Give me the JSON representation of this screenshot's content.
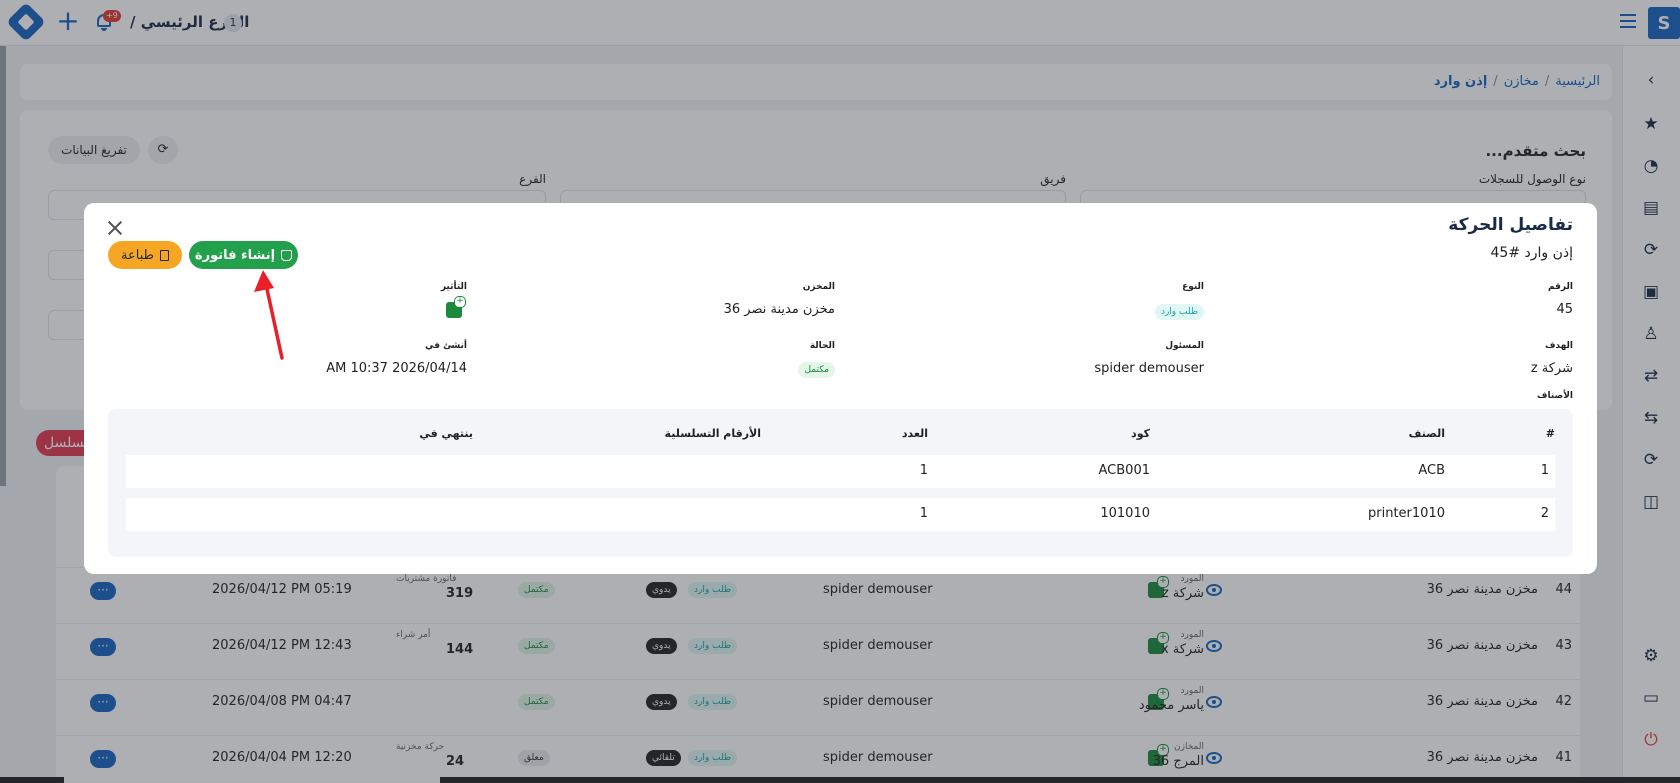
{
  "topbar": {
    "branch_name": "الفرع الرئيسي /",
    "branch_number": "1",
    "notification_count": "+9"
  },
  "breadcrumb": {
    "home": "الرئيسية",
    "section": "مخازن",
    "current": "إذن وارد",
    "sep": "/"
  },
  "background": {
    "advanced_search": "بحث متقدم...",
    "reset_button": "تفريغ البيانات",
    "label_access_type": "نوع الوصول للسجلات",
    "label_team": "فريق",
    "label_branch": "الفرع",
    "pill_label": "تسلسل",
    "rows": [
      {
        "num": "44",
        "warehouse": "مخزن مدينة نصر 36",
        "party_label": "المورد",
        "party": "شركة z",
        "user": "spider demouser",
        "type_tag": "طلب وارد",
        "mode_tag": "يدوي",
        "status": "مكتمل",
        "ref_label": "فاتورة مشتريات",
        "ref_num": "319",
        "date": "2026/04/12 PM 05:19"
      },
      {
        "num": "43",
        "warehouse": "مخزن مدينة نصر 36",
        "party_label": "المورد",
        "party": "شركة x",
        "user": "spider demouser",
        "type_tag": "طلب وارد",
        "mode_tag": "يدوي",
        "status": "مكتمل",
        "ref_label": "أمر شراء",
        "ref_num": "144",
        "date": "2026/04/12 PM 12:43"
      },
      {
        "num": "42",
        "warehouse": "مخزن مدينة نصر 36",
        "party_label": "المورد",
        "party": "ياسر محمود",
        "user": "spider demouser",
        "type_tag": "طلب وارد",
        "mode_tag": "يدوي",
        "status": "مكتمل",
        "ref_label": "",
        "ref_num": "",
        "date": "2026/04/08 PM 04:47"
      },
      {
        "num": "41",
        "warehouse": "مخزن مدينة نصر 36",
        "party_label": "المخازن",
        "party": "المرج 36",
        "user": "spider demouser",
        "type_tag": "طلب وارد",
        "mode_tag": "تلقائي",
        "status": "معلق",
        "ref_label": "حركة مخزنية",
        "ref_num": "24",
        "date": "2026/04/04 PM 12:20"
      }
    ]
  },
  "modal": {
    "title": "تفاصيل الحركة",
    "subtitle": "إذن وارد #45",
    "print_button": "طباعة",
    "invoice_button": "إنشاء فاتورة",
    "fields": {
      "number_label": "الرقم",
      "number_value": "45",
      "type_label": "النوع",
      "type_value": "طلب وارد",
      "warehouse_label": "المخزن",
      "warehouse_value": "مخزن مدينة نصر 36",
      "effect_label": "التأثير",
      "target_label": "الهدف",
      "target_value": "شركة z",
      "responsible_label": "المسئول",
      "responsible_value": "spider demouser",
      "status_label": "الحالة",
      "status_value": "مكتمل",
      "created_label": "أنشئ في",
      "created_value": "2026/04/14 AM 10:37"
    },
    "items_label": "الأصناف",
    "table": {
      "headers": {
        "index": "#",
        "item": "الصنف",
        "code": "كود",
        "qty": "العدد",
        "serials": "الأرقام التسلسلية",
        "expires": "ينتهي في"
      },
      "rows": [
        {
          "index": "1",
          "item": "ACB",
          "code": "ACB001",
          "qty": "1",
          "serials": "",
          "expires": ""
        },
        {
          "index": "2",
          "item": "printer1010",
          "code": "101010",
          "qty": "1",
          "serials": "",
          "expires": ""
        }
      ]
    }
  },
  "colors": {
    "primary": "#1565c0",
    "invoice_green": "#22a04b",
    "print_orange": "#f6a623",
    "annotation_red": "#e8202a"
  }
}
